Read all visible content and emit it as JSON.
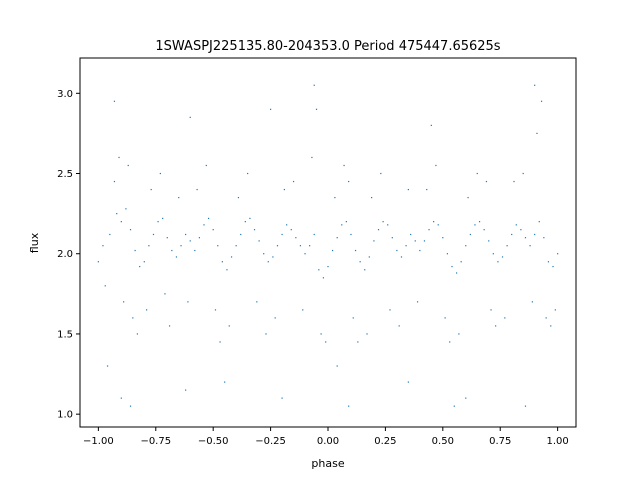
{
  "chart_data": {
    "type": "scatter",
    "title": "1SWASPJ225135.80-204353.0 Period 475447.65625s",
    "xlabel": "phase",
    "ylabel": "flux",
    "xlim": [
      -1.08,
      1.08
    ],
    "ylim": [
      0.92,
      3.22
    ],
    "xticks": [
      -1.0,
      -0.75,
      -0.5,
      -0.25,
      0.0,
      0.25,
      0.5,
      0.75,
      1.0
    ],
    "xtick_labels": [
      "−1.00",
      "−0.75",
      "−0.50",
      "−0.25",
      "0.00",
      "0.25",
      "0.50",
      "0.75",
      "1.00"
    ],
    "yticks": [
      1.0,
      1.5,
      2.0,
      2.5,
      3.0
    ],
    "ytick_labels": [
      "1.0",
      "1.5",
      "2.0",
      "2.5",
      "3.0"
    ],
    "grid": false,
    "legend": "none",
    "series": [
      {
        "color": "#1f77b4",
        "marker_size": 1,
        "points": [
          [
            -0.98,
            2.05
          ],
          [
            -0.95,
            2.12
          ],
          [
            -0.92,
            2.25
          ],
          [
            -0.9,
            2.2
          ],
          [
            -0.88,
            2.28
          ],
          [
            -0.86,
            2.15
          ],
          [
            -0.84,
            2.02
          ],
          [
            -0.82,
            1.92
          ],
          [
            -0.8,
            1.95
          ],
          [
            -0.78,
            2.05
          ],
          [
            -0.76,
            2.12
          ],
          [
            -0.74,
            2.2
          ],
          [
            -0.72,
            2.22
          ],
          [
            -0.7,
            2.1
          ],
          [
            -0.68,
            2.02
          ],
          [
            -0.66,
            1.98
          ],
          [
            -0.64,
            2.05
          ],
          [
            -0.62,
            2.12
          ],
          [
            -0.6,
            2.08
          ],
          [
            -0.58,
            2.02
          ],
          [
            -0.56,
            2.1
          ],
          [
            -0.54,
            2.18
          ],
          [
            -0.52,
            2.22
          ],
          [
            -0.5,
            2.15
          ],
          [
            -0.48,
            2.05
          ],
          [
            -0.46,
            1.95
          ],
          [
            -0.44,
            1.9
          ],
          [
            -0.42,
            1.98
          ],
          [
            -0.4,
            2.05
          ],
          [
            -0.38,
            2.12
          ],
          [
            -0.36,
            2.2
          ],
          [
            -0.34,
            2.22
          ],
          [
            -0.32,
            2.15
          ],
          [
            -0.3,
            2.08
          ],
          [
            -0.28,
            2.0
          ],
          [
            -0.26,
            1.95
          ],
          [
            -0.24,
            1.98
          ],
          [
            -0.22,
            2.05
          ],
          [
            -0.2,
            2.12
          ],
          [
            -0.18,
            2.18
          ],
          [
            -0.16,
            2.15
          ],
          [
            -0.14,
            2.1
          ],
          [
            -0.12,
            2.05
          ],
          [
            -0.1,
            2.0
          ],
          [
            -0.08,
            2.05
          ],
          [
            -0.06,
            2.12
          ],
          [
            -0.04,
            1.9
          ],
          [
            -0.02,
            1.85
          ],
          [
            0.0,
            1.92
          ],
          [
            0.02,
            2.02
          ],
          [
            0.04,
            2.1
          ],
          [
            0.06,
            2.18
          ],
          [
            0.08,
            2.2
          ],
          [
            0.1,
            2.12
          ],
          [
            0.12,
            2.02
          ],
          [
            0.14,
            1.95
          ],
          [
            0.16,
            1.9
          ],
          [
            0.18,
            1.98
          ],
          [
            0.2,
            2.08
          ],
          [
            0.22,
            2.15
          ],
          [
            0.24,
            2.2
          ],
          [
            0.26,
            2.18
          ],
          [
            0.28,
            2.1
          ],
          [
            0.3,
            2.02
          ],
          [
            0.32,
            1.98
          ],
          [
            0.34,
            2.05
          ],
          [
            0.36,
            2.12
          ],
          [
            0.38,
            2.08
          ],
          [
            0.4,
            2.02
          ],
          [
            0.42,
            2.08
          ],
          [
            0.44,
            2.15
          ],
          [
            0.46,
            2.2
          ],
          [
            0.48,
            2.18
          ],
          [
            0.5,
            2.1
          ],
          [
            0.52,
            2.0
          ],
          [
            0.54,
            1.92
          ],
          [
            0.56,
            1.88
          ],
          [
            0.58,
            1.95
          ],
          [
            0.6,
            2.05
          ],
          [
            0.62,
            2.12
          ],
          [
            0.64,
            2.18
          ],
          [
            0.66,
            2.2
          ],
          [
            0.68,
            2.15
          ],
          [
            0.7,
            2.08
          ],
          [
            0.72,
            2.0
          ],
          [
            0.74,
            1.95
          ],
          [
            0.76,
            1.98
          ],
          [
            0.78,
            2.05
          ],
          [
            0.8,
            2.12
          ],
          [
            0.82,
            2.18
          ],
          [
            0.84,
            2.15
          ],
          [
            0.86,
            2.1
          ],
          [
            0.88,
            2.05
          ],
          [
            0.9,
            2.12
          ],
          [
            0.92,
            2.2
          ],
          [
            0.94,
            2.1
          ],
          [
            0.96,
            1.95
          ],
          [
            0.98,
            1.92
          ],
          [
            1.0,
            2.0
          ],
          [
            -1.0,
            1.95
          ],
          [
            -0.97,
            1.8
          ],
          [
            -0.93,
            2.45
          ],
          [
            -0.91,
            2.6
          ],
          [
            -0.89,
            1.7
          ],
          [
            -0.87,
            2.55
          ],
          [
            -0.85,
            1.6
          ],
          [
            -0.83,
            1.5
          ],
          [
            -0.79,
            1.65
          ],
          [
            -0.77,
            2.4
          ],
          [
            -0.73,
            2.5
          ],
          [
            -0.71,
            1.75
          ],
          [
            -0.69,
            1.55
          ],
          [
            -0.65,
            2.35
          ],
          [
            -0.61,
            1.7
          ],
          [
            -0.57,
            2.4
          ],
          [
            -0.53,
            2.55
          ],
          [
            -0.49,
            1.65
          ],
          [
            -0.47,
            1.45
          ],
          [
            -0.43,
            1.55
          ],
          [
            -0.39,
            2.35
          ],
          [
            -0.35,
            2.5
          ],
          [
            -0.31,
            1.7
          ],
          [
            -0.27,
            1.5
          ],
          [
            -0.23,
            1.6
          ],
          [
            -0.19,
            2.4
          ],
          [
            -0.15,
            2.45
          ],
          [
            -0.11,
            1.65
          ],
          [
            -0.07,
            2.6
          ],
          [
            -0.05,
            2.9
          ],
          [
            -0.03,
            1.5
          ],
          [
            -0.01,
            1.45
          ],
          [
            0.03,
            2.35
          ],
          [
            0.07,
            2.55
          ],
          [
            0.09,
            2.45
          ],
          [
            0.11,
            1.6
          ],
          [
            0.13,
            1.45
          ],
          [
            0.17,
            1.5
          ],
          [
            0.19,
            2.35
          ],
          [
            0.23,
            2.5
          ],
          [
            0.27,
            1.65
          ],
          [
            0.31,
            1.55
          ],
          [
            0.35,
            2.4
          ],
          [
            0.39,
            1.7
          ],
          [
            0.43,
            2.4
          ],
          [
            0.47,
            2.55
          ],
          [
            0.51,
            1.6
          ],
          [
            0.53,
            1.45
          ],
          [
            0.57,
            1.5
          ],
          [
            0.61,
            2.35
          ],
          [
            0.65,
            2.5
          ],
          [
            0.69,
            2.45
          ],
          [
            0.71,
            1.65
          ],
          [
            0.73,
            1.55
          ],
          [
            0.77,
            1.6
          ],
          [
            0.81,
            2.45
          ],
          [
            0.85,
            2.5
          ],
          [
            0.89,
            1.7
          ],
          [
            0.91,
            2.75
          ],
          [
            0.93,
            2.95
          ],
          [
            0.95,
            1.6
          ],
          [
            0.97,
            1.55
          ],
          [
            0.99,
            1.65
          ],
          [
            -0.96,
            1.3
          ],
          [
            -0.9,
            1.1
          ],
          [
            -0.86,
            1.05
          ],
          [
            -0.62,
            1.15
          ],
          [
            -0.45,
            1.2
          ],
          [
            -0.2,
            1.1
          ],
          [
            0.04,
            1.3
          ],
          [
            0.09,
            1.05
          ],
          [
            0.35,
            1.2
          ],
          [
            0.6,
            1.1
          ],
          [
            0.86,
            1.05
          ],
          [
            -0.93,
            2.95
          ],
          [
            -0.6,
            2.85
          ],
          [
            -0.25,
            2.9
          ],
          [
            -0.06,
            3.05
          ],
          [
            0.45,
            2.8
          ],
          [
            0.9,
            3.05
          ],
          [
            0.55,
            1.05
          ]
        ]
      }
    ]
  }
}
